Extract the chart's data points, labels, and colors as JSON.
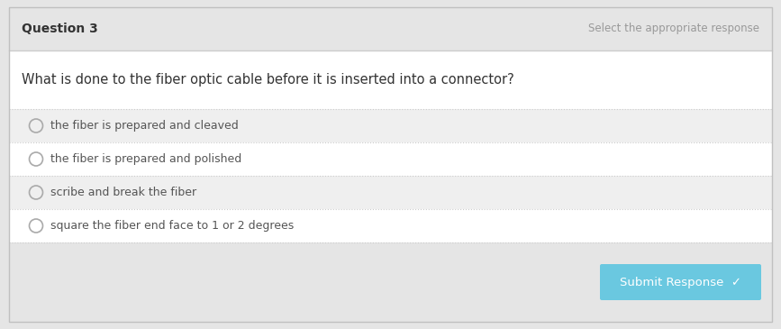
{
  "title": "Question 3",
  "right_header": "Select the appropriate response",
  "question": "What is done to the fiber optic cable before it is inserted into a connector?",
  "options": [
    "the fiber is prepared and cleaved",
    "the fiber is prepared and polished",
    "scribe and break the fiber",
    "square the fiber end face to 1 or 2 degrees"
  ],
  "submit_button_text": "Submit Response  ✓",
  "bg_color": "#e5e5e5",
  "header_bg": "#e5e5e5",
  "white_bg": "#ffffff",
  "option_bg_odd": "#efefef",
  "option_bg_even": "#ffffff",
  "header_text_color": "#333333",
  "right_header_color": "#999999",
  "question_color": "#333333",
  "option_text_color": "#555555",
  "submit_bg": "#6ac8e0",
  "submit_text_color": "#ffffff",
  "divider_color": "#cccccc",
  "divider_solid_color": "#cccccc",
  "radio_color": "#aaaaaa",
  "figsize": [
    8.67,
    3.65
  ],
  "dpi": 100
}
